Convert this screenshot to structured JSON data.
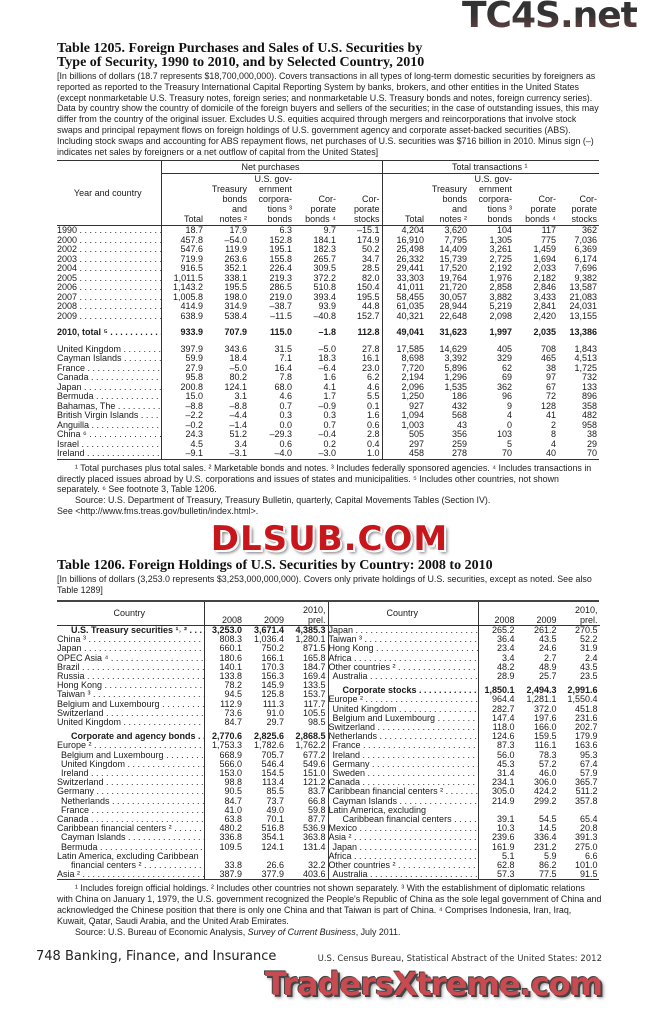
{
  "watermarks": {
    "top": "TC4S.net",
    "middle": "DLSUB.COM",
    "bottom": "TradersXtreme.com"
  },
  "t1205": {
    "title_line1": "Table 1205. Foreign Purchases and Sales of U.S. Securities by",
    "title_line2": "Type of Security, 1990 to 2010, and by Selected Country, 2010",
    "intro": "[In billions of dollars (18.7 represents $18,700,000,000). Covers transactions in all types of long-term domestic securities by foreigners as reported as reported to the Treasury International Capital Reporting System by banks, brokers, and other entities in the United States (except nonmarketable U.S. Treasury notes, foreign series; and nonmarketable U.S. Treasury bonds and notes, foreign currency series). Data by country show the country of domicile of the foreign buyers and sellers of the securities; in the case of outstanding issues, this may differ from the country of the original issuer. Excludes U.S. equities acquired through mergers and reincorporations that involve stock swaps and principal repayment flows on foreign holdings of U.S. government agency and corporate asset-backed securities (ABS). Including stock swaps and  accounting for ABS repayment flows, net purchases of U.S. securities was $716 billion in 2010. Minus sign (–) indicates net sales by foreigners or a net outflow of capital from the United States]",
    "stub_header": "Year and country",
    "group_net": "Net purchases",
    "group_total": "Total transactions ¹",
    "columns": [
      "Total",
      "Treasury\nbonds\nand\nnotes ²",
      "U.S. gov-\nernment\ncorpora-\ntions ³\nbonds",
      "Cor-\nporate\nbonds ⁴",
      "Cor-\nporate\nstocks",
      "Total",
      "Treasury\nbonds\nand\nnotes ²",
      "U.S. gov-\nernment\ncorpora-\ntions ³\nbonds",
      "Cor-\nporate\nbonds ⁴",
      "Cor-\nporate\nstocks"
    ],
    "years": [
      {
        "label": "1990",
        "values": [
          "18.7",
          "17.9",
          "6.3",
          "9.7",
          "–15.1",
          "4,204",
          "3,620",
          "104",
          "117",
          "362"
        ]
      },
      {
        "label": "2000",
        "values": [
          "457.8",
          "–54.0",
          "152.8",
          "184.1",
          "174.9",
          "16,910",
          "7,795",
          "1,305",
          "775",
          "7,036"
        ]
      },
      {
        "label": "2002",
        "values": [
          "547.6",
          "119.9",
          "195.1",
          "182.3",
          "50.2",
          "25,498",
          "14,409",
          "3,261",
          "1,459",
          "6,369"
        ]
      },
      {
        "label": "2003",
        "values": [
          "719.9",
          "263.6",
          "155.8",
          "265.7",
          "34.7",
          "26,332",
          "15,739",
          "2,725",
          "1,694",
          "6,174"
        ]
      },
      {
        "label": "2004",
        "values": [
          "916.5",
          "352.1",
          "226.4",
          "309.5",
          "28.5",
          "29,441",
          "17,520",
          "2,192",
          "2,033",
          "7,696"
        ]
      },
      {
        "label": "2005",
        "values": [
          "1,011.5",
          "338.1",
          "219.3",
          "372.2",
          "82.0",
          "33,303",
          "19,764",
          "1,976",
          "2,182",
          "9,382"
        ]
      },
      {
        "label": "2006",
        "values": [
          "1,143.2",
          "195.5",
          "286.5",
          "510.8",
          "150.4",
          "41,011",
          "21,720",
          "2,858",
          "2,846",
          "13,587"
        ]
      },
      {
        "label": "2007",
        "values": [
          "1,005.8",
          "198.0",
          "219.0",
          "393.4",
          "195.5",
          "58,455",
          "30,057",
          "3,882",
          "3,433",
          "21,083"
        ]
      },
      {
        "label": "2008",
        "values": [
          "414.9",
          "314.9",
          "–38.7",
          "93.9",
          "44.8",
          "61,035",
          "28,944",
          "5,219",
          "2,841",
          "24,031"
        ]
      },
      {
        "label": "2009",
        "values": [
          "638.9",
          "538.4",
          "–11.5",
          "–40.8",
          "152.7",
          "40,321",
          "22,648",
          "2,098",
          "2,420",
          "13,155"
        ]
      }
    ],
    "total": {
      "label": "2010, total ⁵",
      "values": [
        "933.9",
        "707.9",
        "115.0",
        "–1.8",
        "112.8",
        "49,041",
        "31,623",
        "1,997",
        "2,035",
        "13,386"
      ]
    },
    "countries": [
      {
        "label": "United Kingdom",
        "values": [
          "397.9",
          "343.6",
          "31.5",
          "–5.0",
          "27.8",
          "17,585",
          "14,629",
          "405",
          "708",
          "1,843"
        ]
      },
      {
        "label": "Cayman Islands",
        "values": [
          "59.9",
          "18.4",
          "7.1",
          "18.3",
          "16.1",
          "8,698",
          "3,392",
          "329",
          "465",
          "4,513"
        ]
      },
      {
        "label": "France",
        "values": [
          "27.9",
          "–5.0",
          "16.4",
          "–6.4",
          "23.0",
          "7,720",
          "5,896",
          "62",
          "38",
          "1,725"
        ]
      },
      {
        "label": "Canada",
        "values": [
          "95.8",
          "80.2",
          "7.8",
          "1.6",
          "6.2",
          "2,194",
          "1,296",
          "69",
          "97",
          "732"
        ]
      },
      {
        "label": "Japan",
        "values": [
          "200.8",
          "124.1",
          "68.0",
          "4.1",
          "4.6",
          "2,096",
          "1,535",
          "362",
          "67",
          "133"
        ]
      },
      {
        "label": "Bermuda",
        "values": [
          "15.0",
          "3.1",
          "4.6",
          "1.7",
          "5.5",
          "1,250",
          "186",
          "96",
          "72",
          "896"
        ]
      },
      {
        "label": "Bahamas, The",
        "values": [
          "–8.8",
          "–8.8",
          "0.7",
          "–0.9",
          "0.1",
          "927",
          "432",
          "9",
          "128",
          "358"
        ]
      },
      {
        "label": "British Virgin Islands",
        "values": [
          "–2.2",
          "–4.4",
          "0.3",
          "0.3",
          "1.6",
          "1,094",
          "568",
          "4",
          "41",
          "482"
        ]
      },
      {
        "label": "Anguilla",
        "values": [
          "–0.2",
          "–1.4",
          "0.0",
          "0.7",
          "0.6",
          "1,003",
          "43",
          "0",
          "2",
          "958"
        ]
      },
      {
        "label": "China ⁶",
        "values": [
          "24.3",
          "51.2",
          "–29.3",
          "–0.4",
          "2.8",
          "505",
          "356",
          "103",
          "8",
          "38"
        ]
      },
      {
        "label": "Israel",
        "values": [
          "4.5",
          "3.4",
          "0.6",
          "0.2",
          "0.4",
          "297",
          "259",
          "5",
          "4",
          "29"
        ]
      },
      {
        "label": "Ireland",
        "values": [
          "–9.1",
          "–3.1",
          "–4.0",
          "–3.0",
          "1.0",
          "458",
          "278",
          "70",
          "40",
          "70"
        ]
      }
    ],
    "footnotes": "¹ Total purchases plus total sales. ² Marketable bonds and notes. ³ Includes federally sponsored agencies. ⁴ Includes transactions in directly placed issues abroad by U.S. corporations and issues of states and municipalities. ⁵ Includes other countries, not shown separately. ⁶ See footnote 3, Table 1206.",
    "source": "Source: U.S. Department of Treasury, Treasury Bulletin, quarterly, Capital Movements Tables (Section IV).",
    "see": "See <http://www.fms.treas.gov/bulletin/index.html>."
  },
  "t1206": {
    "title": "Table 1206. Foreign Holdings of U.S. Securities by Country: 2008 to 2010",
    "intro": "[In billions of dollars (3,253.0 represents $3,253,000,000,000). Covers only private holdings of U.S. securities, except as noted. See also Table 1289]",
    "header": {
      "country": "Country",
      "y2008": "2008",
      "y2009": "2009",
      "y2010": "2010,\nprel."
    },
    "left": [
      {
        "label": "U.S. Treasury securities ¹˒ ²",
        "values": [
          "3,253.0",
          "3,671.4",
          "4,385.3"
        ],
        "style": "bold"
      },
      {
        "label": "China ³",
        "values": [
          "808.3",
          "1,036.4",
          "1,280.1"
        ]
      },
      {
        "label": "Japan",
        "values": [
          "660.1",
          "750.2",
          "871.5"
        ]
      },
      {
        "label": "OPEC Asia ⁴",
        "values": [
          "180.6",
          "166.1",
          "165.8"
        ]
      },
      {
        "label": "Brazil",
        "values": [
          "140.1",
          "170.3",
          "184.7"
        ]
      },
      {
        "label": "Russia",
        "values": [
          "133.8",
          "156.3",
          "169.4"
        ]
      },
      {
        "label": "Hong Kong",
        "values": [
          "78.2",
          "145.9",
          "133.5"
        ]
      },
      {
        "label": "Taiwan ³",
        "values": [
          "94.5",
          "125.8",
          "153.7"
        ]
      },
      {
        "label": "Belgium and Luxembourg",
        "values": [
          "112.9",
          "111.3",
          "117.7"
        ]
      },
      {
        "label": "Switzerland",
        "values": [
          "73.6",
          "91.0",
          "105.5"
        ]
      },
      {
        "label": "United Kingdom",
        "values": [
          "84.7",
          "29.7",
          "98.5"
        ]
      },
      {
        "label": "Corporate and agency bonds",
        "values": [
          "2,770.6",
          "2,825.6",
          "2,868.5"
        ],
        "style": "bold",
        "gap": true
      },
      {
        "label": "Europe ²",
        "values": [
          "1,753.3",
          "1,782.6",
          "1,762.2"
        ]
      },
      {
        "label": "Belgium and Luxembourg",
        "values": [
          "668.9",
          "705.7",
          "677.2"
        ],
        "style": "indent"
      },
      {
        "label": "United Kingdom",
        "values": [
          "566.0",
          "546.4",
          "549.6"
        ],
        "style": "indent"
      },
      {
        "label": "Ireland",
        "values": [
          "153.0",
          "154.5",
          "151.0"
        ],
        "style": "indent"
      },
      {
        "label": "Switzerland",
        "values": [
          "98.8",
          "113.4",
          "121.2"
        ]
      },
      {
        "label": "Germany",
        "values": [
          "90.5",
          "85.5",
          "83.7"
        ]
      },
      {
        "label": "Netherlands",
        "values": [
          "84.7",
          "73.7",
          "66.8"
        ],
        "style": "indent"
      },
      {
        "label": "France",
        "values": [
          "41.0",
          "49.0",
          "59.8"
        ],
        "style": "indent"
      },
      {
        "label": "Canada",
        "values": [
          "63.8",
          "70.1",
          "87.7"
        ]
      },
      {
        "label": "Caribbean financial centers ²",
        "values": [
          "480.2",
          "516.8",
          "536.9"
        ]
      },
      {
        "label": "Cayman Islands",
        "values": [
          "336.8",
          "354.1",
          "363.8"
        ],
        "style": "indent"
      },
      {
        "label": "Bermuda",
        "values": [
          "109.5",
          "124.1",
          "131.4"
        ],
        "style": "indent"
      },
      {
        "label": "Latin America, excluding Caribbean",
        "values": null
      },
      {
        "label": "financial centers ²",
        "values": [
          "33.8",
          "26.6",
          "32.2"
        ],
        "style": "indent2"
      },
      {
        "label": "Asia ²",
        "values": [
          "387.9",
          "377.9",
          "403.6"
        ]
      }
    ],
    "right": [
      {
        "label": "Japan",
        "values": [
          "265.2",
          "261.2",
          "270.5"
        ]
      },
      {
        "label": "Taiwan ³",
        "values": [
          "36.4",
          "43.5",
          "52.2"
        ]
      },
      {
        "label": "Hong Kong",
        "values": [
          "23.4",
          "24.6",
          "31.9"
        ]
      },
      {
        "label": "Africa",
        "values": [
          "3.4",
          "2.7",
          "2.4"
        ]
      },
      {
        "label": "Other countries ²",
        "values": [
          "48.2",
          "48.9",
          "43.5"
        ]
      },
      {
        "label": "Australia",
        "values": [
          "28.9",
          "25.7",
          "23.5"
        ],
        "style": "indent"
      },
      {
        "label": "Corporate stocks",
        "values": [
          "1,850.1",
          "2,494.3",
          "2,991.6"
        ],
        "style": "bold",
        "gap": true
      },
      {
        "label": "Europe ²",
        "values": [
          "964.4",
          "1,281.1",
          "1,550.4"
        ]
      },
      {
        "label": "United Kingdom",
        "values": [
          "282.7",
          "372.0",
          "451.8"
        ],
        "style": "indent"
      },
      {
        "label": "Belgium and Luxembourg",
        "values": [
          "147.4",
          "197.6",
          "231.6"
        ],
        "style": "indent"
      },
      {
        "label": "Switzerland",
        "values": [
          "118.0",
          "166.0",
          "202.7"
        ]
      },
      {
        "label": "Netherlands",
        "values": [
          "124.6",
          "159.5",
          "179.9"
        ]
      },
      {
        "label": "France",
        "values": [
          "87.3",
          "116.1",
          "163.6"
        ],
        "style": "indent"
      },
      {
        "label": "Ireland",
        "values": [
          "56.0",
          "78.3",
          "95.3"
        ],
        "style": "indent"
      },
      {
        "label": "Germany",
        "values": [
          "45.3",
          "57.2",
          "67.4"
        ],
        "style": "indent"
      },
      {
        "label": "Sweden",
        "values": [
          "31.4",
          "46.0",
          "57.9"
        ],
        "style": "indent"
      },
      {
        "label": "Canada",
        "values": [
          "234.1",
          "306.0",
          "365.7"
        ]
      },
      {
        "label": "Caribbean financial centers ²",
        "values": [
          "305.0",
          "424.2",
          "511.2"
        ]
      },
      {
        "label": "Cayman Islands",
        "values": [
          "214.9",
          "299.2",
          "357.8"
        ],
        "style": "indent"
      },
      {
        "label": "Latin America, excluding",
        "values": null
      },
      {
        "label": "Caribbean financial centers",
        "values": [
          "39.1",
          "54.5",
          "65.4"
        ],
        "style": "indent2"
      },
      {
        "label": "Mexico",
        "values": [
          "10.3",
          "14.5",
          "20.8"
        ]
      },
      {
        "label": "Asia ²",
        "values": [
          "239.6",
          "336.4",
          "391.3"
        ]
      },
      {
        "label": "Japan",
        "values": [
          "161.9",
          "231.2",
          "275.0"
        ],
        "style": "indent"
      },
      {
        "label": "Africa",
        "values": [
          "5.1",
          "5.9",
          "6.6"
        ]
      },
      {
        "label": "Other countries ²",
        "values": [
          "62.8",
          "86.2",
          "101.0"
        ]
      },
      {
        "label": "Australia",
        "values": [
          "57.3",
          "77.5",
          "91.5"
        ],
        "style": "indent"
      }
    ],
    "footnotes": "¹ Includes foreign official holdings. ² Includes other countries not shown separately. ³ With the establishment of diplomatic relations with China on January 1, 1979, the U.S. government recognized the People's Republic of China as the sole legal government of China and acknowledged the Chinese position that there is only one China and that Taiwan is part of China. ⁴ Comprises Indonesia, Iran, Iraq, Kuwait, Qatar, Saudi Arabia, and the United Arab Emirates.",
    "source_prefix": "Source: U.S. Bureau of Economic Analysis, ",
    "source_italic": "Survey of Current Business",
    "source_suffix": ", July 2011."
  },
  "footer": {
    "page": "748  Banking, Finance, and Insurance",
    "census": "U.S. Census Bureau, Statistical Abstract of the United States: 2012"
  }
}
